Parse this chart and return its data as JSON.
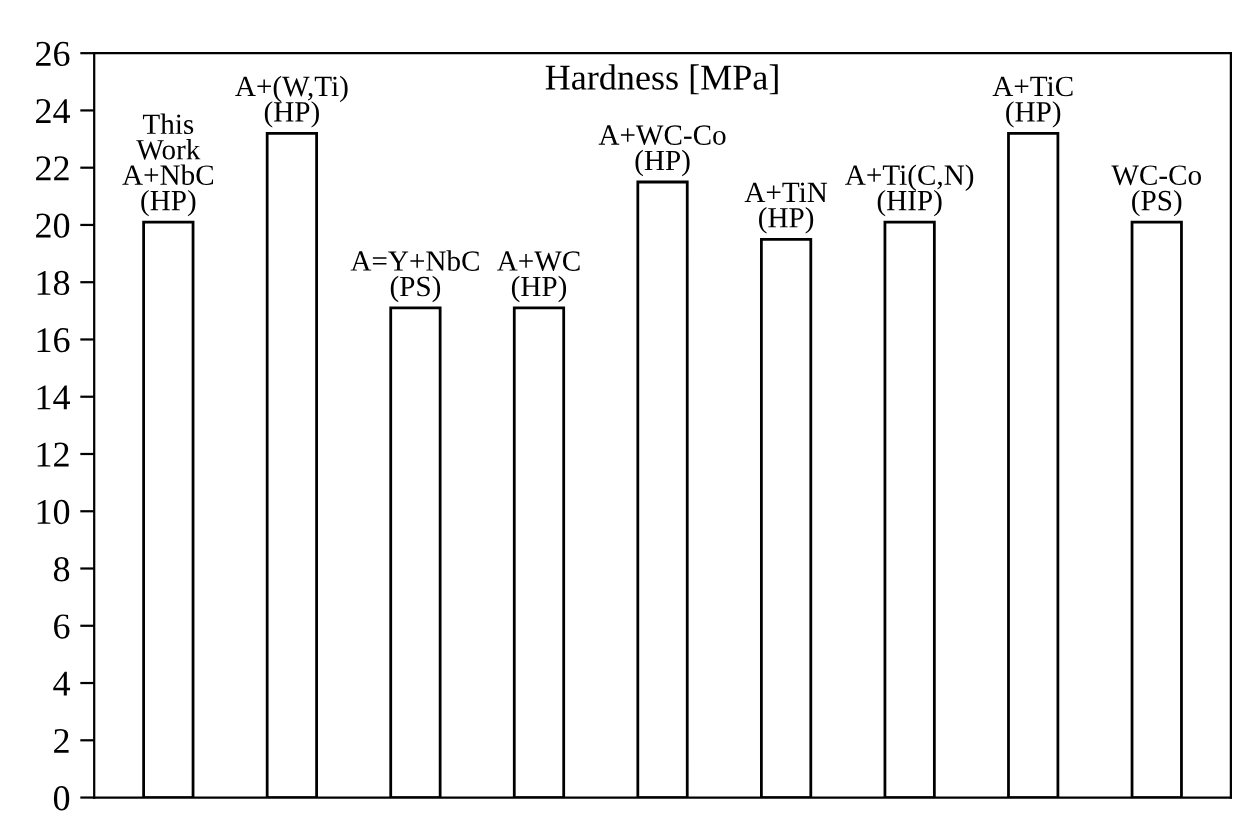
{
  "chart_data": {
    "type": "bar",
    "title": "Hardness [MPa]",
    "categories": [
      "This\nWork\nA+NbC\n(HP)",
      "A+(W,Ti)\n(HP)",
      "A=Y+NbC\n(PS)",
      "A+WC\n(HP)",
      "A+WC-Co\n(HP)",
      "A+TiN\n(HP)",
      "A+Ti(C,N)\n(HIP)",
      "A+TiC\n(HP)",
      "WC-Co\n(PS)"
    ],
    "values": [
      20.1,
      23.2,
      17.1,
      17.1,
      21.5,
      19.5,
      20.1,
      23.2,
      20.1
    ],
    "color": "#ffffff",
    "ylim": [
      0,
      26
    ],
    "yticks": [
      0,
      2,
      4,
      6,
      8,
      10,
      12,
      14,
      16,
      18,
      20,
      22,
      24,
      26
    ],
    "grid": false,
    "legend": false
  }
}
